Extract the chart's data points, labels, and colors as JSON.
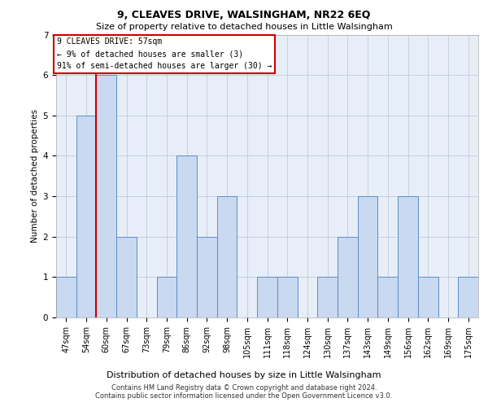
{
  "title1": "9, CLEAVES DRIVE, WALSINGHAM, NR22 6EQ",
  "title2": "Size of property relative to detached houses in Little Walsingham",
  "xlabel": "Distribution of detached houses by size in Little Walsingham",
  "ylabel": "Number of detached properties",
  "categories": [
    "47sqm",
    "54sqm",
    "60sqm",
    "67sqm",
    "73sqm",
    "79sqm",
    "86sqm",
    "92sqm",
    "98sqm",
    "105sqm",
    "111sqm",
    "118sqm",
    "124sqm",
    "130sqm",
    "137sqm",
    "143sqm",
    "149sqm",
    "156sqm",
    "162sqm",
    "169sqm",
    "175sqm"
  ],
  "values": [
    1,
    5,
    6,
    2,
    0,
    1,
    4,
    2,
    3,
    0,
    1,
    1,
    0,
    1,
    2,
    3,
    1,
    3,
    1,
    0,
    1
  ],
  "bar_color": "#c9d9f0",
  "bar_edge_color": "#5b8ec4",
  "annotation_lines": [
    "9 CLEAVES DRIVE: 57sqm",
    "← 9% of detached houses are smaller (3)",
    "91% of semi-detached houses are larger (30) →"
  ],
  "annotation_box_color": "#ffffff",
  "annotation_box_edge": "#cc0000",
  "footnote1": "Contains HM Land Registry data © Crown copyright and database right 2024.",
  "footnote2": "Contains public sector information licensed under the Open Government Licence v3.0.",
  "ylim": [
    0,
    7
  ],
  "background_color": "#e8eef8",
  "title1_fontsize": 9,
  "title2_fontsize": 8,
  "ylabel_fontsize": 7.5,
  "xlabel_fontsize": 8,
  "tick_fontsize": 7,
  "ann_fontsize": 7,
  "footnote_fontsize": 6
}
